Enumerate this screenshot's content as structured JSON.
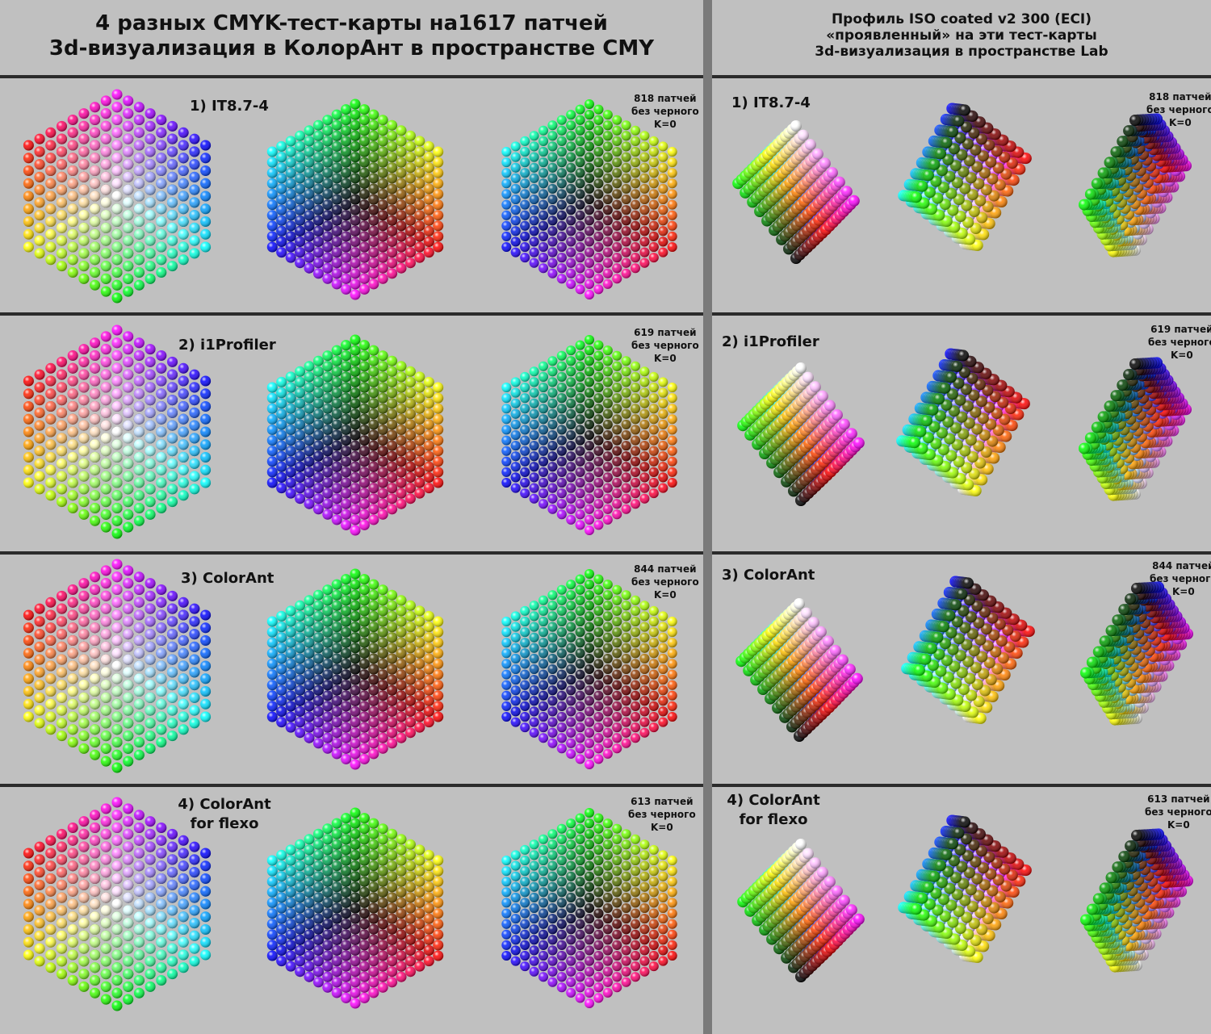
{
  "left": {
    "title_line1": "4 разных CMYK-тест-карты на1617 патчей",
    "title_line2": "3d-визуализация в КолорАнт в пространстве CMY"
  },
  "right": {
    "title_line1": "Профиль ISO coated v2 300 (ECI)",
    "title_line2": "«проявленный» на эти тест-карты",
    "title_line3": "3d-визуализация в пространстве Lab"
  },
  "charts": [
    {
      "label_line1": "1) IT8.7-4",
      "label_line2": "",
      "note_line1": "818 патчей",
      "note_line2": "без черного",
      "note_line3": "K=0"
    },
    {
      "label_line1": "2) i1Profiler",
      "label_line2": "",
      "note_line1": "619 патчей",
      "note_line2": "без черного",
      "note_line3": "K=0"
    },
    {
      "label_line1": "3) ColorAnt",
      "label_line2": "",
      "note_line1": "844 патчей",
      "note_line2": "без черного",
      "note_line3": "K=0"
    },
    {
      "label_line1": "4) ColorAnt",
      "label_line2": "for flexo",
      "note_line1": "613 патчей",
      "note_line2": "без черного",
      "note_line3": "K=0"
    }
  ],
  "colors": {
    "background": "#c0c0c0",
    "divider": "#7a7a7a",
    "rule": "#2b2b2b"
  },
  "viz_types": [
    "cmy-cube-white-corner",
    "cmy-cube-black-corner",
    "cmy-cube-black-corner-sparse",
    "lab-gamut-white",
    "lab-gamut-dark",
    "lab-gamut-dark-side"
  ]
}
